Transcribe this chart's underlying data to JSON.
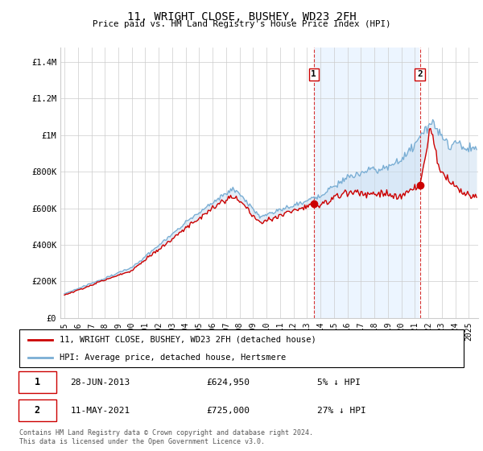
{
  "title": "11, WRIGHT CLOSE, BUSHEY, WD23 2FH",
  "subtitle": "Price paid vs. HM Land Registry's House Price Index (HPI)",
  "ylabel_ticks": [
    "£0",
    "£200K",
    "£400K",
    "£600K",
    "£800K",
    "£1M",
    "£1.2M",
    "£1.4M"
  ],
  "ylabel_values": [
    0,
    200000,
    400000,
    600000,
    800000,
    1000000,
    1200000,
    1400000
  ],
  "ylim": [
    0,
    1480000
  ],
  "xlim_start": 1994.7,
  "xlim_end": 2025.7,
  "legend_line1": "11, WRIGHT CLOSE, BUSHEY, WD23 2FH (detached house)",
  "legend_line2": "HPI: Average price, detached house, Hertsmere",
  "transaction1_label": "1",
  "transaction1_date": "28-JUN-2013",
  "transaction1_price": "£624,950",
  "transaction1_info": "5% ↓ HPI",
  "transaction1_x": 2013.5,
  "transaction1_y": 624950,
  "transaction2_label": "2",
  "transaction2_date": "11-MAY-2021",
  "transaction2_price": "£725,000",
  "transaction2_info": "27% ↓ HPI",
  "transaction2_x": 2021.37,
  "transaction2_y": 725000,
  "footnote": "Contains HM Land Registry data © Crown copyright and database right 2024.\nThis data is licensed under the Open Government Licence v3.0.",
  "red_color": "#cc0000",
  "blue_color": "#7aaed4",
  "fill_color": "#ddeeff",
  "background_color": "#ffffff",
  "grid_color": "#cccccc"
}
